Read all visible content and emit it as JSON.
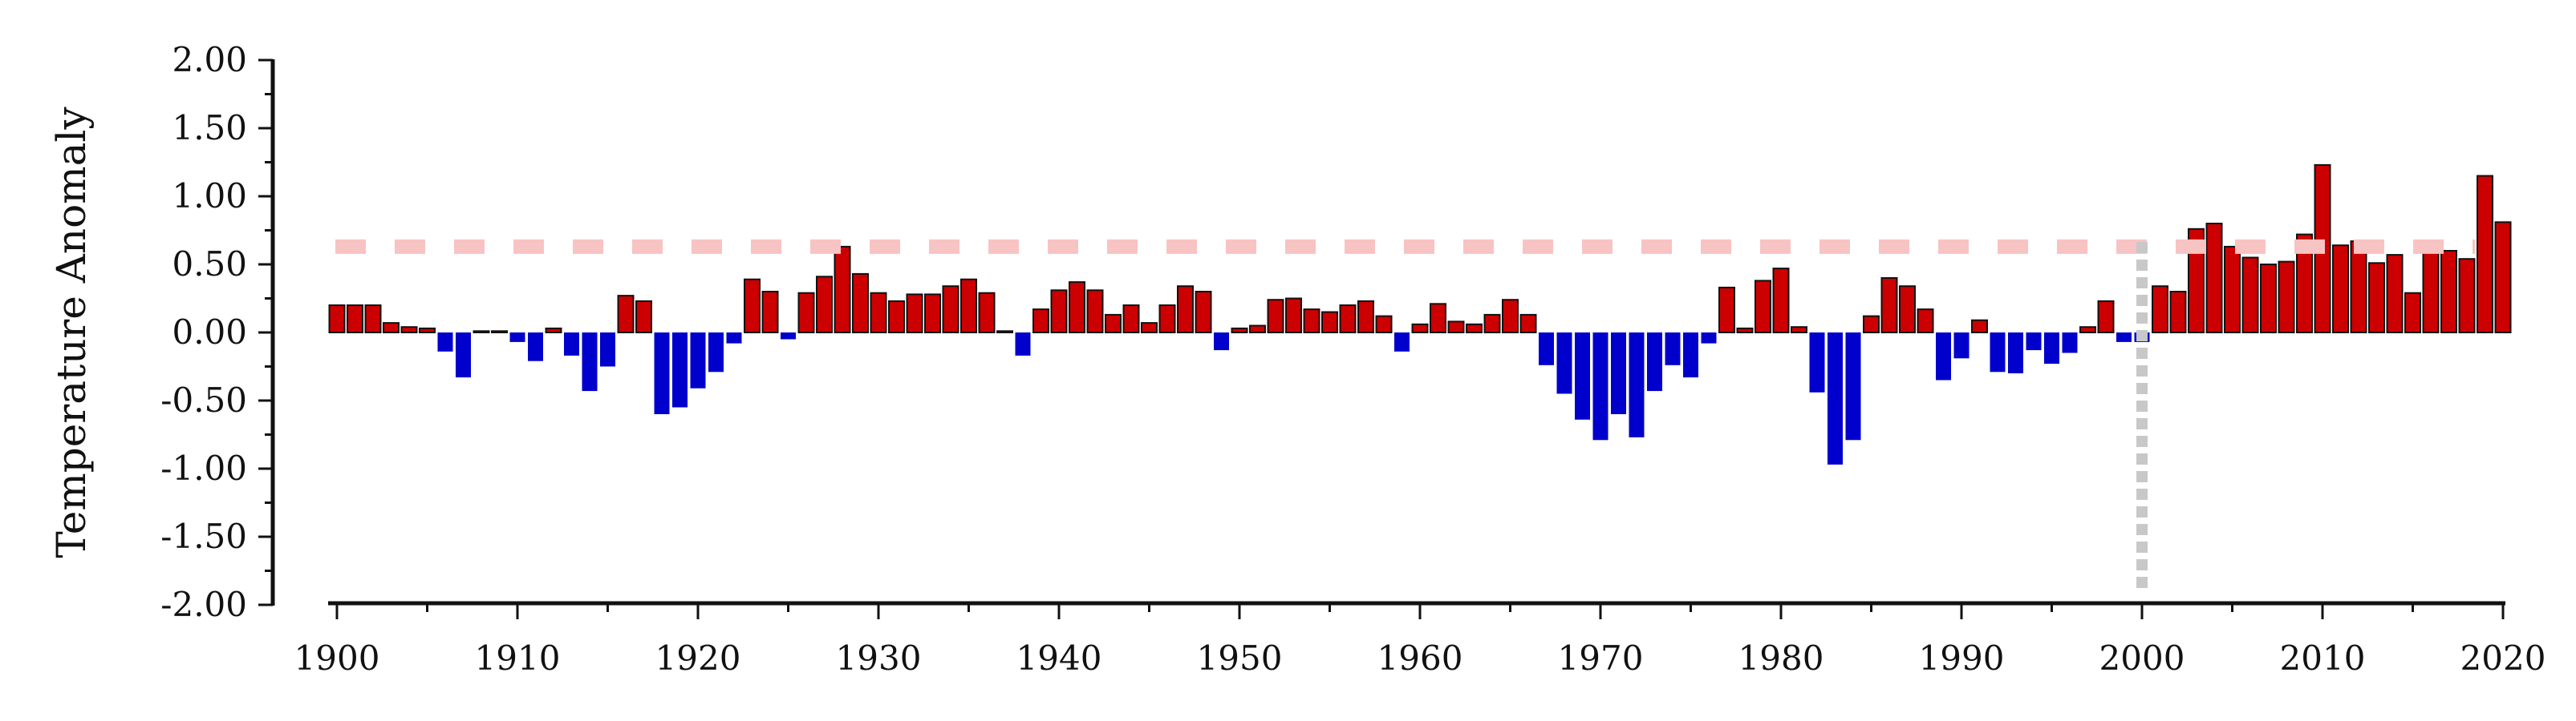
{
  "chart_data": {
    "type": "bar",
    "title": "",
    "xlabel": "",
    "ylabel": "Temperature Anomaly",
    "xlim": [
      1900,
      2020
    ],
    "ylim": [
      -2.0,
      2.0
    ],
    "yticks": [
      "-2.00",
      "-1.50",
      "-1.00",
      "-0.50",
      "0.00",
      "0.50",
      "1.00",
      "1.50",
      "2.00"
    ],
    "xticks": [
      "1900",
      "1910",
      "1920",
      "1930",
      "1940",
      "1950",
      "1960",
      "1970",
      "1980",
      "1990",
      "2000",
      "2010",
      "2020"
    ],
    "grid": false,
    "legend": "none",
    "colors": {
      "positive": "#cc0000",
      "negative": "#0000cc",
      "threshold_line": "#f8c3c3",
      "marker_line": "#c8c8c8",
      "axis": "#111111"
    },
    "threshold": 0.63,
    "vertical_marker_year": 2000,
    "x": [
      1900,
      1901,
      1902,
      1903,
      1904,
      1905,
      1906,
      1907,
      1908,
      1909,
      1910,
      1911,
      1912,
      1913,
      1914,
      1915,
      1916,
      1917,
      1918,
      1919,
      1920,
      1921,
      1922,
      1923,
      1924,
      1925,
      1926,
      1927,
      1928,
      1929,
      1930,
      1931,
      1932,
      1933,
      1934,
      1935,
      1936,
      1937,
      1938,
      1939,
      1940,
      1941,
      1942,
      1943,
      1944,
      1945,
      1946,
      1947,
      1948,
      1949,
      1950,
      1951,
      1952,
      1953,
      1954,
      1955,
      1956,
      1957,
      1958,
      1959,
      1960,
      1961,
      1962,
      1963,
      1964,
      1965,
      1966,
      1967,
      1968,
      1969,
      1970,
      1971,
      1972,
      1973,
      1974,
      1975,
      1976,
      1977,
      1978,
      1979,
      1980,
      1981,
      1982,
      1983,
      1984,
      1985,
      1986,
      1987,
      1988,
      1989,
      1990,
      1991,
      1992,
      1993,
      1994,
      1995,
      1996,
      1997,
      1998,
      1999,
      2000,
      2001,
      2002,
      2003,
      2004,
      2005,
      2006,
      2007,
      2008,
      2009,
      2010,
      2011,
      2012,
      2013,
      2014,
      2015,
      2016,
      2017,
      2018,
      2019,
      2020
    ],
    "values": [
      0.2,
      0.2,
      0.2,
      0.07,
      0.04,
      0.03,
      -0.14,
      -0.33,
      0.01,
      0.01,
      -0.07,
      -0.21,
      0.03,
      -0.17,
      -0.43,
      -0.25,
      0.27,
      0.23,
      -0.6,
      -0.55,
      -0.41,
      -0.29,
      -0.08,
      0.39,
      0.3,
      -0.05,
      0.29,
      0.41,
      0.63,
      0.43,
      0.29,
      0.23,
      0.28,
      0.28,
      0.34,
      0.39,
      0.29,
      0.01,
      -0.17,
      0.17,
      0.31,
      0.37,
      0.31,
      0.13,
      0.2,
      0.07,
      0.2,
      0.34,
      0.3,
      -0.13,
      0.03,
      0.05,
      0.24,
      0.25,
      0.17,
      0.15,
      0.2,
      0.23,
      0.12,
      -0.14,
      0.06,
      0.21,
      0.08,
      0.06,
      0.13,
      0.24,
      0.13,
      -0.24,
      -0.45,
      -0.64,
      -0.79,
      -0.6,
      -0.77,
      -0.43,
      -0.24,
      -0.33,
      -0.08,
      0.33,
      0.03,
      0.38,
      0.47,
      0.04,
      -0.44,
      -0.97,
      -0.79,
      0.12,
      0.4,
      0.34,
      0.17,
      -0.35,
      -0.19,
      0.09,
      -0.29,
      -0.3,
      -0.13,
      -0.23,
      -0.15,
      0.04,
      0.23,
      -0.07,
      -0.07,
      0.34,
      0.3,
      0.76,
      0.8,
      0.63,
      0.55,
      0.5,
      0.52,
      0.72,
      1.23,
      0.64,
      0.67,
      0.51,
      0.57,
      0.29,
      0.66,
      0.6,
      0.54,
      1.15,
      0.81
    ]
  }
}
